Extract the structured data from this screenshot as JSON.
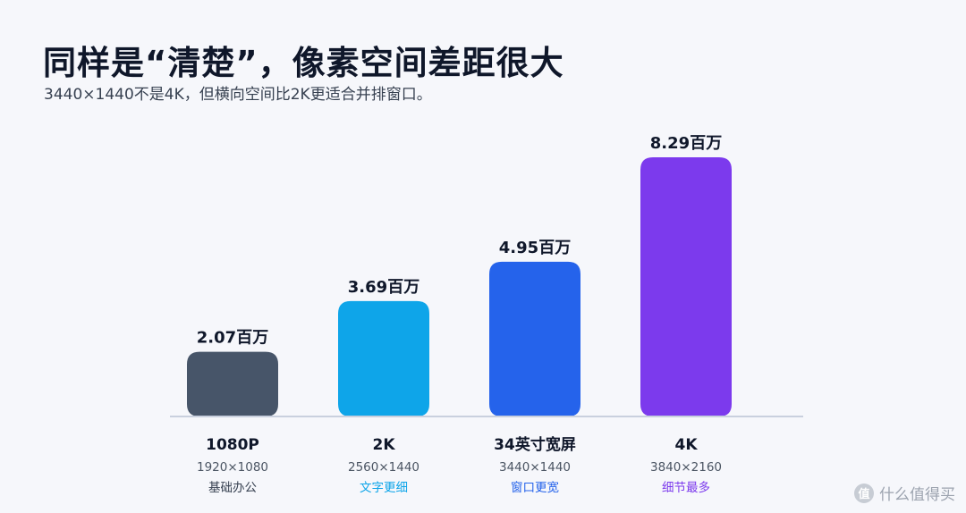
{
  "header": {
    "title": "同样是“清楚”，像素空间差距很大",
    "subtitle": "3440×1440不是4K，但横向空间比2K更适合并排窗口。"
  },
  "chart_data": {
    "type": "bar",
    "categories": [
      "1080P",
      "2K",
      "34英寸宽屏",
      "4K"
    ],
    "resolutions": [
      "1920×1080",
      "2560×1440",
      "3440×1440",
      "3840×2160"
    ],
    "notes": [
      "基础办公",
      "文字更细",
      "窗口更宽",
      "细节最多"
    ],
    "values": [
      2.07,
      3.69,
      4.95,
      8.29
    ],
    "value_labels": [
      "2.07百万",
      "3.69百万",
      "4.95百万",
      "8.29百万"
    ],
    "unit": "百万",
    "ylim": [
      0,
      8.29
    ],
    "grid": false,
    "colors": [
      "#475569",
      "#0ea5e9",
      "#2563eb",
      "#7c3aed"
    ],
    "note_colors": [
      "#374151",
      "#0ea5e9",
      "#2563eb",
      "#7c3aed"
    ],
    "baseline_color": "#c9d0de"
  },
  "watermark": {
    "icon": "zhi-icon",
    "icon_glyph": "值",
    "text": "什么值得买"
  }
}
